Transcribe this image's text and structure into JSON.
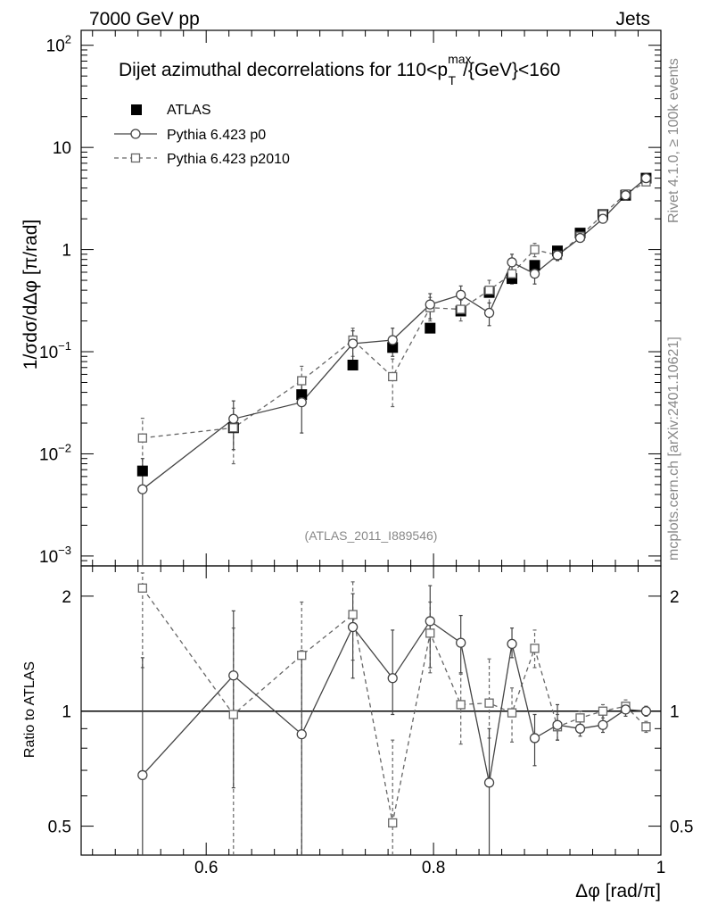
{
  "header": {
    "left": "7000 GeV pp",
    "right": "Jets"
  },
  "side_labels": {
    "rivet": "Rivet 4.1.0, ≥ 100k events",
    "mcplots": "mcplots.cern.ch [arXiv:2401.10621]"
  },
  "colors": {
    "data": "#000000",
    "p0": "#444444",
    "p2010": "#666666",
    "grey_text": "#888888"
  },
  "chart_data": [
    {
      "type": "scatter",
      "panel": "main",
      "title": {
        "prefix": "Dijet azimuthal decorrelations for 110<p",
        "sub": "T",
        "sup": "max",
        "suffix": "/{GeV}<160"
      },
      "ylabel": "1/σdσ/dΔφ [π/rad]",
      "yscale": "log",
      "ylim": [
        0.0008,
        140
      ],
      "xlim": [
        0.49,
        1.0
      ],
      "yticks": [
        {
          "value": 0.001,
          "base": "10",
          "exp": "−3"
        },
        {
          "value": 0.01,
          "base": "10",
          "exp": "−2"
        },
        {
          "value": 0.1,
          "base": "10",
          "exp": "−1"
        },
        {
          "value": 1,
          "base": "1",
          "exp": ""
        },
        {
          "value": 10,
          "base": "10",
          "exp": ""
        },
        {
          "value": 100,
          "base": "10",
          "exp": "2"
        }
      ],
      "watermark": "(ATLAS_2011_I889546)",
      "legend_position": "top-left",
      "series": [
        {
          "name": "ATLAS",
          "marker": "filled-square",
          "x": [
            0.544,
            0.624,
            0.684,
            0.729,
            0.764,
            0.797,
            0.824,
            0.849,
            0.869,
            0.889,
            0.909,
            0.929,
            0.949,
            0.969,
            0.987
          ],
          "y": [
            0.0068,
            0.018,
            0.038,
            0.074,
            0.11,
            0.17,
            0.25,
            0.38,
            0.52,
            0.7,
            0.97,
            1.45,
            2.2,
            3.4,
            5.0
          ]
        },
        {
          "name": "Pythia 6.423 p0",
          "marker": "open-circle",
          "line": "solid",
          "x": [
            0.544,
            0.624,
            0.684,
            0.729,
            0.764,
            0.797,
            0.824,
            0.849,
            0.869,
            0.889,
            0.909,
            0.929,
            0.949,
            0.969,
            0.987
          ],
          "y": [
            0.0045,
            0.022,
            0.032,
            0.12,
            0.13,
            0.29,
            0.36,
            0.24,
            0.75,
            0.58,
            0.88,
            1.3,
            2.0,
            3.4,
            5.0
          ],
          "err": [
            0.0045,
            0.011,
            0.016,
            0.04,
            0.04,
            0.08,
            0.08,
            0.06,
            0.15,
            0.12,
            0.1,
            0.12,
            0.15,
            0.2,
            0.25
          ]
        },
        {
          "name": "Pythia 6.423 p2010",
          "marker": "open-square",
          "line": "dashed",
          "x": [
            0.544,
            0.624,
            0.684,
            0.729,
            0.764,
            0.797,
            0.824,
            0.849,
            0.869,
            0.889,
            0.909,
            0.929,
            0.949,
            0.969,
            0.987
          ],
          "y": [
            0.0143,
            0.018,
            0.052,
            0.13,
            0.057,
            0.27,
            0.26,
            0.4,
            0.58,
            1.0,
            0.88,
            1.35,
            2.2,
            3.5,
            4.6
          ],
          "err": [
            0.008,
            0.01,
            0.02,
            0.04,
            0.028,
            0.07,
            0.06,
            0.1,
            0.12,
            0.15,
            0.1,
            0.12,
            0.15,
            0.2,
            0.25
          ]
        }
      ]
    },
    {
      "type": "scatter",
      "panel": "ratio",
      "ylabel": "Ratio to ATLAS",
      "xlabel": "Δφ [rad/π]",
      "yscale": "log",
      "ylim": [
        0.42,
        2.4
      ],
      "xlim": [
        0.49,
        1.0
      ],
      "xticks": [
        0.6,
        0.8,
        1.0
      ],
      "xtick_labels": [
        "0.6",
        "0.8",
        "1"
      ],
      "yticks": [
        0.5,
        1,
        2
      ],
      "ytick_labels": [
        "0.5",
        "1",
        "2"
      ],
      "reference": 1,
      "series": [
        {
          "name": "Pythia 6.423 p0",
          "marker": "open-circle",
          "line": "solid",
          "x": [
            0.544,
            0.624,
            0.684,
            0.729,
            0.764,
            0.797,
            0.824,
            0.849,
            0.869,
            0.889,
            0.909,
            0.929,
            0.949,
            0.969,
            0.987
          ],
          "y": [
            0.68,
            1.24,
            0.87,
            1.66,
            1.22,
            1.72,
            1.51,
            0.65,
            1.5,
            0.85,
            0.92,
            0.9,
            0.92,
            1.01,
            1.0
          ],
          "lo": [
            0.3,
            0.63,
            0.36,
            1.22,
            0.98,
            1.3,
            1.26,
            0.4,
            1.38,
            0.72,
            0.84,
            0.86,
            0.88,
            0.97,
            0.97
          ],
          "hi": [
            1.38,
            1.83,
            1.44,
            2.03,
            1.63,
            2.13,
            1.78,
            0.9,
            1.65,
            0.98,
            1.04,
            0.95,
            0.98,
            1.05,
            1.03
          ]
        },
        {
          "name": "Pythia 6.423 p2010",
          "marker": "open-square",
          "line": "dashed",
          "x": [
            0.544,
            0.624,
            0.684,
            0.729,
            0.764,
            0.797,
            0.824,
            0.849,
            0.869,
            0.889,
            0.909,
            0.929,
            0.949,
            0.969,
            0.987
          ],
          "y": [
            2.1,
            0.98,
            1.4,
            1.79,
            0.51,
            1.6,
            1.04,
            1.05,
            0.99,
            1.46,
            0.91,
            0.96,
            1.0,
            1.03,
            0.91
          ],
          "lo": [
            1.3,
            0.35,
            0.36,
            1.36,
            0.3,
            1.26,
            0.82,
            0.85,
            0.83,
            1.3,
            0.84,
            0.92,
            0.96,
            0.99,
            0.88
          ],
          "hi": [
            2.3,
            1.65,
            1.93,
            2.18,
            0.84,
            1.93,
            1.25,
            1.37,
            1.15,
            1.63,
            0.98,
            1.0,
            1.04,
            1.07,
            0.94
          ]
        }
      ]
    }
  ]
}
